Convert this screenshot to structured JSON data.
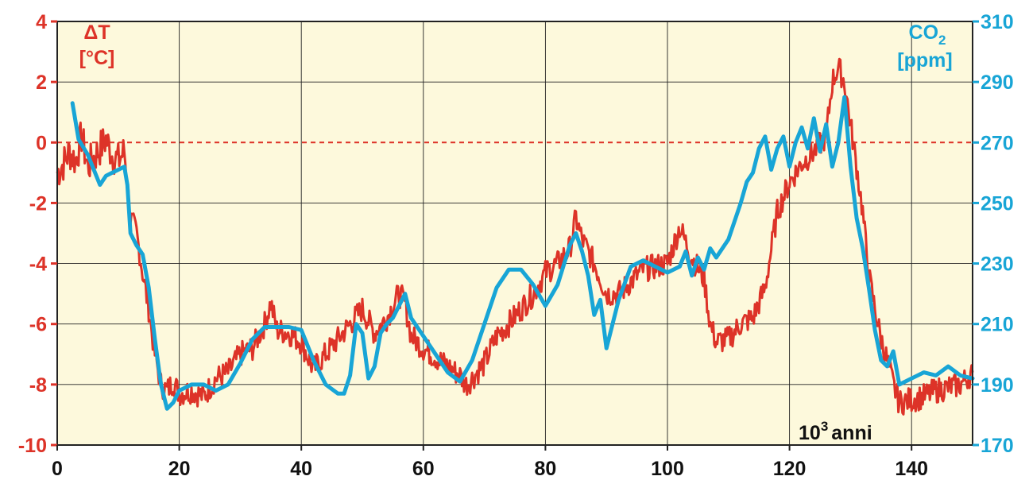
{
  "chart_data": {
    "type": "line",
    "colors": {
      "temperature": "#dd3328",
      "co2": "#18a5d6",
      "plot_bg": "#fdf9dc",
      "grid": "#222222"
    },
    "x_axis": {
      "range": [
        0,
        150
      ],
      "ticks": [
        "0",
        "20",
        "40",
        "60",
        "80",
        "100",
        "120",
        "140"
      ],
      "unit_label": {
        "base": "10",
        "exp": "3",
        "word": "anni"
      }
    },
    "y_left": {
      "range": [
        -10,
        4
      ],
      "ticks": [
        "-10",
        "-8",
        "-6",
        "-4",
        "-2",
        "0",
        "2",
        "4"
      ],
      "label": {
        "symbol": "ΔT",
        "unit": "[°C]"
      }
    },
    "y_right": {
      "range": [
        170,
        310
      ],
      "ticks": [
        "170",
        "190",
        "210",
        "230",
        "250",
        "270",
        "290",
        "310"
      ],
      "label": {
        "base": "CO",
        "sub": "2",
        "unit": "[ppm]"
      }
    },
    "reference_line": {
      "axis": "left",
      "value": 0,
      "style": "dashed"
    },
    "grid": true,
    "series": [
      {
        "axis": "left",
        "noise": true,
        "x": [
          0,
          1,
          2,
          3,
          4,
          5,
          6,
          7,
          8,
          9,
          10,
          11,
          12,
          13,
          14,
          15,
          16,
          17,
          18,
          19,
          20,
          22,
          24,
          26,
          28,
          30,
          32,
          34,
          35,
          36,
          38,
          40,
          42,
          44,
          46,
          48,
          50,
          52,
          54,
          56,
          57,
          58,
          60,
          62,
          64,
          66,
          67,
          68,
          70,
          72,
          74,
          76,
          78,
          80,
          82,
          84,
          85,
          86,
          88,
          90,
          92,
          94,
          96,
          98,
          100,
          102,
          104,
          106,
          107,
          108,
          110,
          112,
          114,
          116,
          118,
          120,
          122,
          124,
          126,
          127,
          128,
          129,
          130,
          131,
          132,
          133,
          134,
          135,
          136,
          137,
          138,
          140,
          142,
          144,
          146,
          148,
          150
        ],
        "values": [
          -1,
          -0.7,
          -0.3,
          -0.6,
          0.2,
          -0.8,
          -0.5,
          -0.2,
          0.1,
          -0.4,
          -0.6,
          -0.3,
          -2.5,
          -3,
          -4.3,
          -5.5,
          -7,
          -8,
          -8.2,
          -7.9,
          -8.3,
          -8.2,
          -8.4,
          -7.8,
          -7.6,
          -7,
          -6.8,
          -6,
          -5.3,
          -6.2,
          -6.3,
          -6.6,
          -7.5,
          -7,
          -6.5,
          -6,
          -5.5,
          -6.3,
          -5.8,
          -5,
          -5.3,
          -6.4,
          -6.8,
          -7.1,
          -7.4,
          -7.7,
          -8,
          -7.8,
          -7.3,
          -6.4,
          -6,
          -5.5,
          -5,
          -4.3,
          -4,
          -3.5,
          -2.5,
          -3.2,
          -4,
          -5,
          -5,
          -4.6,
          -4.2,
          -4.1,
          -4,
          -2.8,
          -3.8,
          -4.5,
          -6,
          -6.6,
          -6.5,
          -6,
          -5.8,
          -4.8,
          -2.3,
          -1.3,
          -0.7,
          -0.3,
          0.2,
          2,
          2.5,
          2,
          0.6,
          -0.8,
          -2.3,
          -4.4,
          -5.5,
          -6.5,
          -7.2,
          -8,
          -8.6,
          -8.5,
          -8.4,
          -8.2,
          -8.1,
          -8,
          -7.6
        ]
      },
      {
        "axis": "right",
        "x": [
          2.5,
          3.5,
          5,
          6,
          7,
          8,
          9,
          10,
          11,
          11.5,
          12,
          13,
          14,
          15,
          16,
          17,
          18,
          19,
          20,
          22,
          24,
          26,
          28,
          30,
          32,
          34,
          36,
          38,
          40,
          42,
          44,
          46,
          47,
          48,
          49,
          50,
          51,
          52,
          53,
          54,
          55,
          56,
          57,
          58,
          60,
          62,
          64,
          66,
          68,
          70,
          72,
          74,
          76,
          78,
          80,
          82,
          84,
          85,
          86,
          87,
          88,
          89,
          90,
          92,
          94,
          96,
          98,
          100,
          102,
          103,
          104,
          105,
          106,
          107,
          108,
          110,
          112,
          113,
          114,
          115,
          116,
          117,
          118,
          119,
          120,
          121,
          122,
          123,
          124,
          125,
          126,
          127,
          128,
          129,
          130,
          131,
          132,
          133,
          134,
          135,
          136,
          137,
          138,
          140,
          142,
          144,
          146,
          148,
          150
        ],
        "values": [
          283,
          271,
          266,
          261,
          256,
          259,
          260,
          261,
          262,
          256,
          240,
          236,
          233,
          222,
          205,
          190,
          182,
          184,
          188,
          190,
          190,
          188,
          190,
          197,
          205,
          209,
          209,
          209,
          208,
          198,
          190,
          187,
          187,
          193,
          210,
          207,
          192,
          196,
          207,
          210,
          212,
          216,
          220,
          212,
          206,
          200,
          194,
          191,
          198,
          210,
          222,
          228,
          228,
          223,
          216,
          223,
          236,
          240,
          234,
          226,
          213,
          218,
          202,
          218,
          229,
          231,
          229,
          227,
          229,
          234,
          226,
          232,
          228,
          235,
          232,
          238,
          250,
          257,
          260,
          268,
          272,
          261,
          268,
          272,
          262,
          270,
          275,
          268,
          278,
          267,
          276,
          262,
          270,
          285,
          262,
          245,
          235,
          222,
          208,
          198,
          196,
          201,
          190,
          192,
          194,
          193,
          196,
          193,
          192
        ]
      }
    ]
  }
}
